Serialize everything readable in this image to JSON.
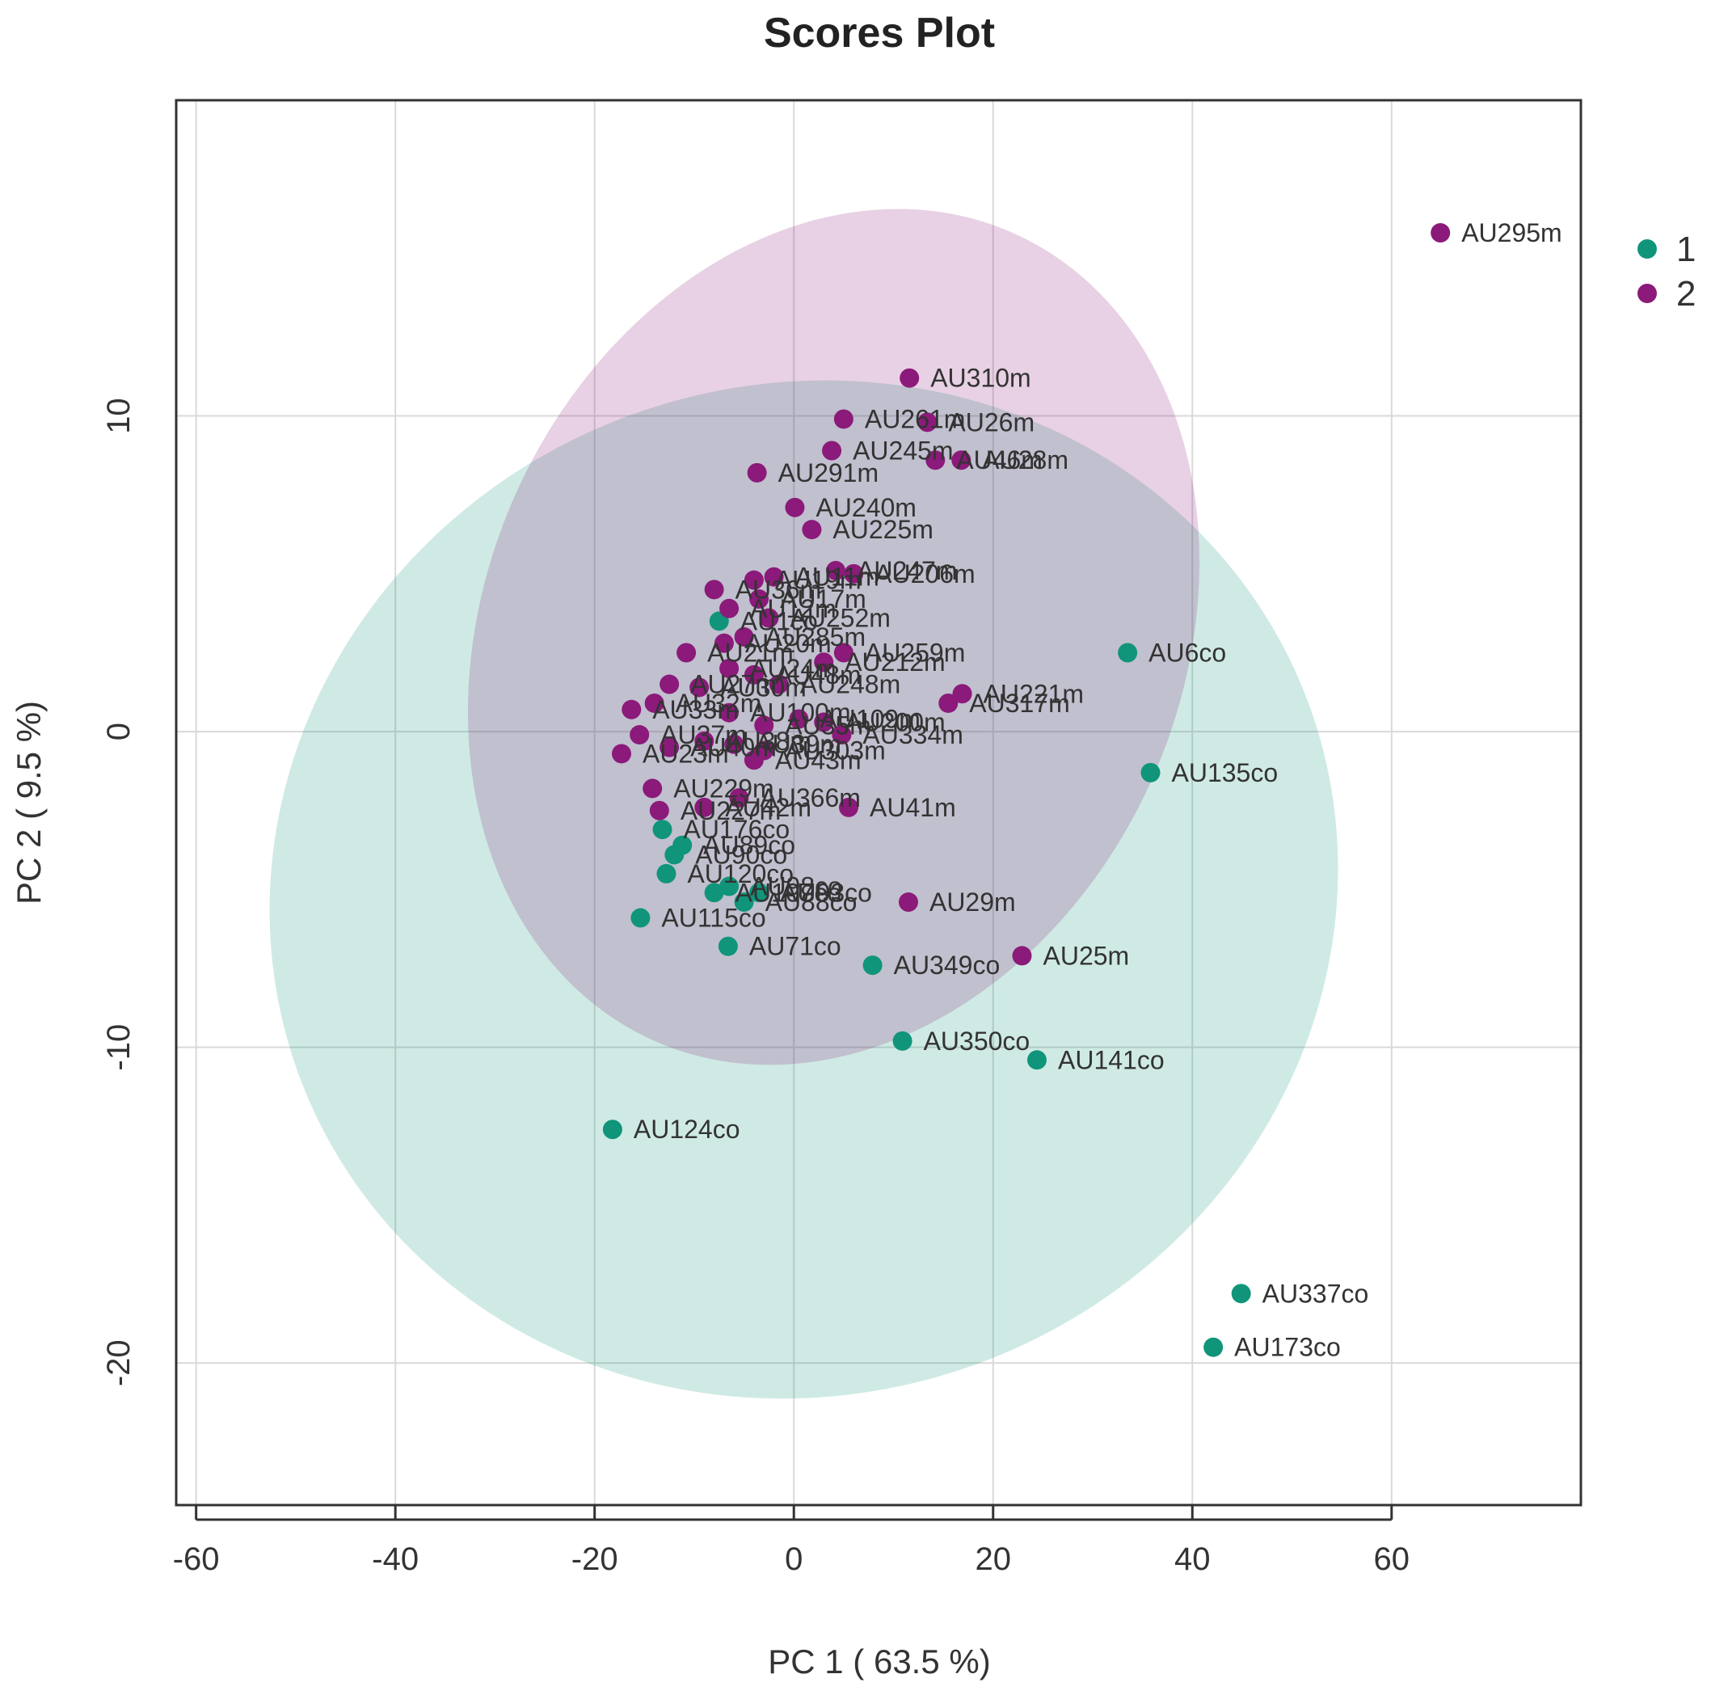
{
  "chart_data": {
    "type": "scatter",
    "title": "Scores Plot",
    "xlabel": "PC 1 ( 63.5 %)",
    "ylabel": "PC 2 ( 9.5 %)",
    "xlim": [
      -62,
      79
    ],
    "ylim": [
      -24.5,
      20
    ],
    "xticks": [
      -60,
      -40,
      -20,
      0,
      20,
      40,
      60
    ],
    "yticks": [
      10,
      0,
      -10,
      -20
    ],
    "grid": true,
    "legend_position": "right",
    "series": [
      {
        "name": "1",
        "color": "#10957a",
        "ellipse": {
          "cx": 1,
          "cy": -5,
          "rx": 54,
          "ry": 16,
          "angle_deg": -20
        },
        "points": [
          {
            "x": 33.5,
            "y": 2.5,
            "label": "AU6co"
          },
          {
            "x": 35.8,
            "y": -1.3,
            "label": "AU135co"
          },
          {
            "x": -6.6,
            "y": -6.8,
            "label": "AU71co"
          },
          {
            "x": 7.9,
            "y": -7.4,
            "label": "AU349co"
          },
          {
            "x": 10.9,
            "y": -9.8,
            "label": "AU350co"
          },
          {
            "x": 24.4,
            "y": -10.4,
            "label": "AU141co"
          },
          {
            "x": -18.2,
            "y": -12.6,
            "label": "AU124co"
          },
          {
            "x": 44.9,
            "y": -17.8,
            "label": "AU337co"
          },
          {
            "x": 42.1,
            "y": -19.5,
            "label": "AU173co"
          },
          {
            "x": -15.4,
            "y": -5.9,
            "label": "AU115co"
          },
          {
            "x": -13.2,
            "y": -3.1,
            "label": "AU176co"
          },
          {
            "x": -12.8,
            "y": -4.5,
            "label": "AU120co"
          },
          {
            "x": -12.0,
            "y": -3.9,
            "label": "AU90co"
          },
          {
            "x": -11.2,
            "y": -3.6,
            "label": "AU89co"
          },
          {
            "x": -8.0,
            "y": -5.1,
            "label": "AU107co"
          },
          {
            "x": -6.5,
            "y": -4.9,
            "label": "AU98co"
          },
          {
            "x": -5.0,
            "y": -5.4,
            "label": "AU88co"
          },
          {
            "x": -3.5,
            "y": -5.1,
            "label": "AU93co"
          },
          {
            "x": -7.5,
            "y": 3.5,
            "label": "AU1co"
          }
        ]
      },
      {
        "name": "2",
        "color": "#8b1a7a",
        "ellipse": {
          "cx": 4,
          "cy": 3,
          "rx": 35,
          "ry": 14,
          "angle_deg": 24
        },
        "points": [
          {
            "x": 64.9,
            "y": 15.8,
            "label": "AU295m"
          },
          {
            "x": 11.6,
            "y": 11.2,
            "label": "AU310m"
          },
          {
            "x": 5.0,
            "y": 9.9,
            "label": "AU261m"
          },
          {
            "x": 13.4,
            "y": 9.8,
            "label": "AU26m"
          },
          {
            "x": 3.8,
            "y": 8.9,
            "label": "AU245m"
          },
          {
            "x": 14.2,
            "y": 8.6,
            "label": "AU46m"
          },
          {
            "x": 16.8,
            "y": 8.6,
            "label": "AU28m"
          },
          {
            "x": -3.7,
            "y": 8.2,
            "label": "AU291m"
          },
          {
            "x": 0.1,
            "y": 7.1,
            "label": "AU240m"
          },
          {
            "x": 1.8,
            "y": 6.4,
            "label": "AU225m"
          },
          {
            "x": 4.2,
            "y": 5.1,
            "label": "AU247m"
          },
          {
            "x": 6.0,
            "y": 5.0,
            "label": "AU206m"
          },
          {
            "x": -2.0,
            "y": 4.9,
            "label": "AU11m"
          },
          {
            "x": -4.0,
            "y": 4.8,
            "label": "AU19m"
          },
          {
            "x": -8.0,
            "y": 4.5,
            "label": "AU36m"
          },
          {
            "x": -3.5,
            "y": 4.2,
            "label": "AU17m"
          },
          {
            "x": -6.5,
            "y": 3.9,
            "label": "AU12m"
          },
          {
            "x": -2.5,
            "y": 3.6,
            "label": "AU252m"
          },
          {
            "x": -5.0,
            "y": 3.0,
            "label": "AU285m"
          },
          {
            "x": -7.0,
            "y": 2.8,
            "label": "AU20m"
          },
          {
            "x": 5.0,
            "y": 2.5,
            "label": "AU259m"
          },
          {
            "x": -10.8,
            "y": 2.5,
            "label": "AU21m"
          },
          {
            "x": 3.0,
            "y": 2.2,
            "label": "AU212m"
          },
          {
            "x": -6.5,
            "y": 2.0,
            "label": "AU24m"
          },
          {
            "x": -4.0,
            "y": 1.8,
            "label": "AU48m"
          },
          {
            "x": -1.5,
            "y": 1.5,
            "label": "AU248m"
          },
          {
            "x": -12.5,
            "y": 1.5,
            "label": "AU27m"
          },
          {
            "x": -9.5,
            "y": 1.4,
            "label": "AU30m"
          },
          {
            "x": 16.9,
            "y": 1.2,
            "label": "AU221m"
          },
          {
            "x": 15.5,
            "y": 0.9,
            "label": "AU317m"
          },
          {
            "x": -14.0,
            "y": 0.9,
            "label": "AU32m"
          },
          {
            "x": -16.3,
            "y": 0.7,
            "label": "AU33m"
          },
          {
            "x": -6.5,
            "y": 0.6,
            "label": "AU100m"
          },
          {
            "x": 0.5,
            "y": 0.4,
            "label": "AU109m"
          },
          {
            "x": 3.0,
            "y": 0.3,
            "label": "AU200m"
          },
          {
            "x": -3.0,
            "y": 0.2,
            "label": "AU35m"
          },
          {
            "x": -15.5,
            "y": -0.1,
            "label": "AU37m"
          },
          {
            "x": 4.8,
            "y": -0.1,
            "label": "AU334m"
          },
          {
            "x": -9.0,
            "y": -0.3,
            "label": "AU38m"
          },
          {
            "x": -6.0,
            "y": -0.4,
            "label": "AU39m"
          },
          {
            "x": -12.5,
            "y": -0.5,
            "label": "AU40m"
          },
          {
            "x": -3.0,
            "y": -0.6,
            "label": "AU303m"
          },
          {
            "x": -17.3,
            "y": -0.7,
            "label": "AU23m"
          },
          {
            "x": -4.0,
            "y": -0.9,
            "label": "AU43m"
          },
          {
            "x": -14.2,
            "y": -1.8,
            "label": "AU229m"
          },
          {
            "x": -5.5,
            "y": -2.1,
            "label": "AU366m"
          },
          {
            "x": -9.0,
            "y": -2.4,
            "label": "AU42m"
          },
          {
            "x": 5.5,
            "y": -2.4,
            "label": "AU41m"
          },
          {
            "x": -13.5,
            "y": -2.5,
            "label": "AU227m"
          },
          {
            "x": 11.5,
            "y": -5.4,
            "label": "AU29m"
          },
          {
            "x": 22.9,
            "y": -7.1,
            "label": "AU25m"
          }
        ]
      }
    ]
  }
}
